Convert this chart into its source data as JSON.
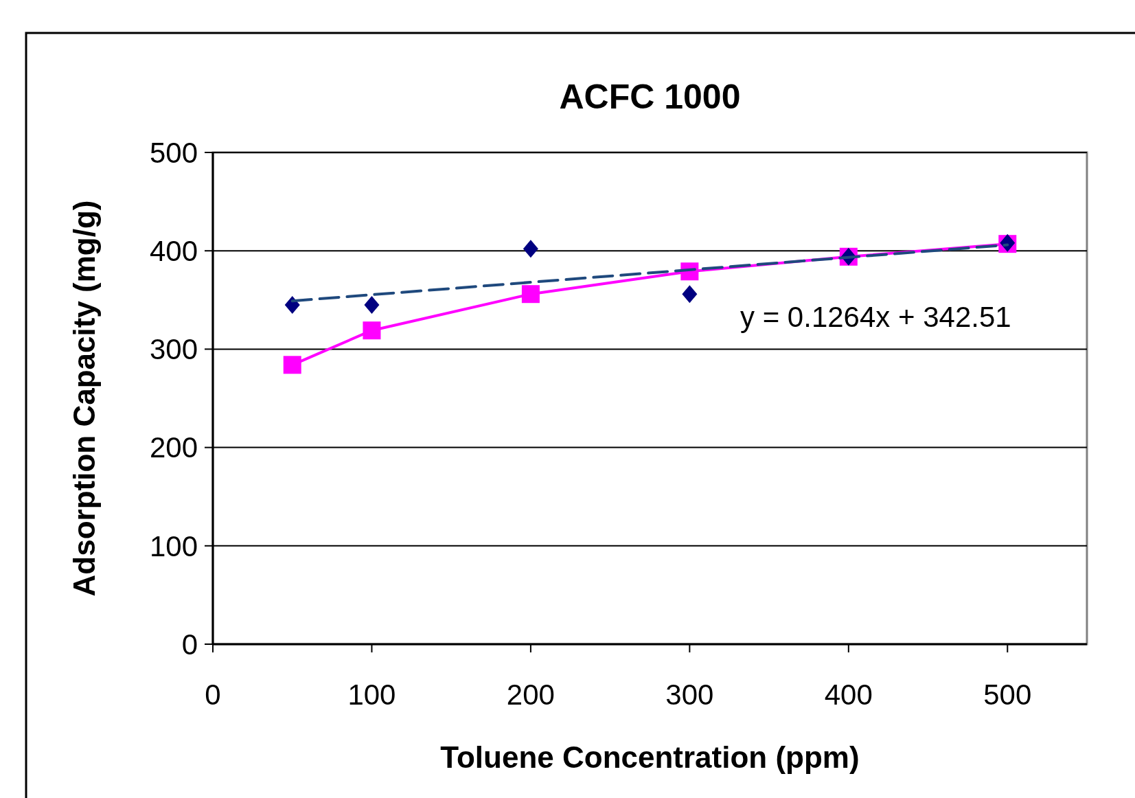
{
  "chart_data": {
    "type": "scatter",
    "title": "ACFC 1000",
    "xlabel": "Toluene Concentration (ppm)",
    "ylabel": "Adsorption Capacity (mg/g)",
    "xlim": [
      0,
      550
    ],
    "xticks": [
      0,
      100,
      200,
      300,
      400,
      500
    ],
    "ylim": [
      0,
      500
    ],
    "yticks": [
      0,
      100,
      200,
      300,
      400,
      500
    ],
    "grid": "y",
    "series": [
      {
        "type": "line",
        "x": [
          50,
          100,
          200,
          300,
          400,
          500
        ],
        "values": [
          284,
          319,
          356,
          379,
          394,
          407
        ],
        "color": "#ff00ff",
        "marker": "square",
        "line_style": "solid"
      },
      {
        "x": [
          50,
          100,
          200,
          300,
          400,
          500
        ],
        "values": [
          345,
          345,
          402,
          356,
          394,
          408
        ],
        "color": "#000080",
        "marker": "diamond"
      },
      {
        "type": "line",
        "x": [
          50,
          500
        ],
        "values": [
          349,
          406
        ],
        "color": "#1f497d",
        "line_style": "dashed",
        "marker": "none"
      }
    ],
    "annotations": [
      "y = 0.1264x + 342.51"
    ]
  }
}
